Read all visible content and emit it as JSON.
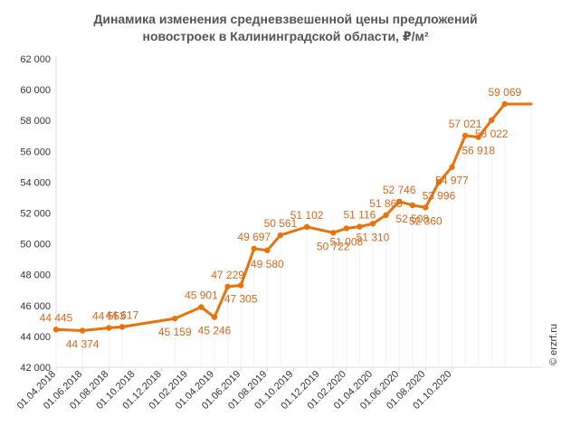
{
  "chart_data": {
    "type": "line",
    "title_lines": [
      "Динамика изменения средневзвешенной цены предложений",
      "новостроек в Калининградской области, ₽/м²"
    ],
    "xlabel": "",
    "ylabel": "",
    "ylim": [
      42000,
      62000
    ],
    "yticks": [
      "42 000",
      "44 000",
      "46 000",
      "48 000",
      "50 000",
      "52 000",
      "54 000",
      "56 000",
      "58 000",
      "60 000",
      "62 000"
    ],
    "xtick_labels": [
      "01.04.2018",
      "01.06.2018",
      "01.08.2018",
      "01.10.2018",
      "01.12.2018",
      "01.02.2019",
      "01.04.2019",
      "01.06.2019",
      "01.08.2019",
      "01.10.2019",
      "01.12.2019",
      "01.02.2020",
      "01.04.2020",
      "01.06.2020",
      "01.08.2020",
      "01.10.2020"
    ],
    "xtick_months": [
      0,
      2,
      4,
      6,
      8,
      10,
      12,
      14,
      16,
      18,
      20,
      22,
      24,
      26,
      28,
      30
    ],
    "x_months": [
      0,
      2,
      4,
      5,
      9,
      11,
      12,
      13,
      14,
      15,
      16,
      17,
      19,
      21,
      22,
      23,
      24,
      25,
      26,
      27,
      28,
      29,
      30,
      31,
      32,
      33,
      34,
      36
    ],
    "values": [
      44445,
      44374,
      44553,
      44617,
      45159,
      45901,
      45246,
      47229,
      47305,
      49697,
      49580,
      50561,
      51102,
      50722,
      51008,
      51116,
      51310,
      51865,
      52746,
      52508,
      52360,
      53996,
      54977,
      57021,
      56918,
      58022,
      59069,
      59069
    ],
    "labels": [
      "44 445",
      "44 374",
      "44 553",
      "44 617",
      "45 159",
      "45 901",
      "45 246",
      "47 229",
      "47 305",
      "49 697",
      "49 580",
      "50 561",
      "51 102",
      "50 722",
      "51 008",
      "51 116",
      "51 310",
      "51 865",
      "52 746",
      "52 508",
      "52 360",
      "53 996",
      "54 977",
      "57 021",
      "56 918",
      "58 022",
      "59 069",
      ""
    ],
    "label_position": [
      "above",
      "below",
      "above",
      "above",
      "below",
      "above",
      "below",
      "above",
      "below",
      "above",
      "below",
      "above",
      "above",
      "below",
      "below",
      "above",
      "below",
      "above",
      "above",
      "below",
      "below",
      "below",
      "below",
      "above",
      "below",
      "below",
      "above",
      "none"
    ],
    "color": "#E8720C",
    "label_color": "#D2691E",
    "grid": false
  },
  "credit": "© erzrf.ru"
}
